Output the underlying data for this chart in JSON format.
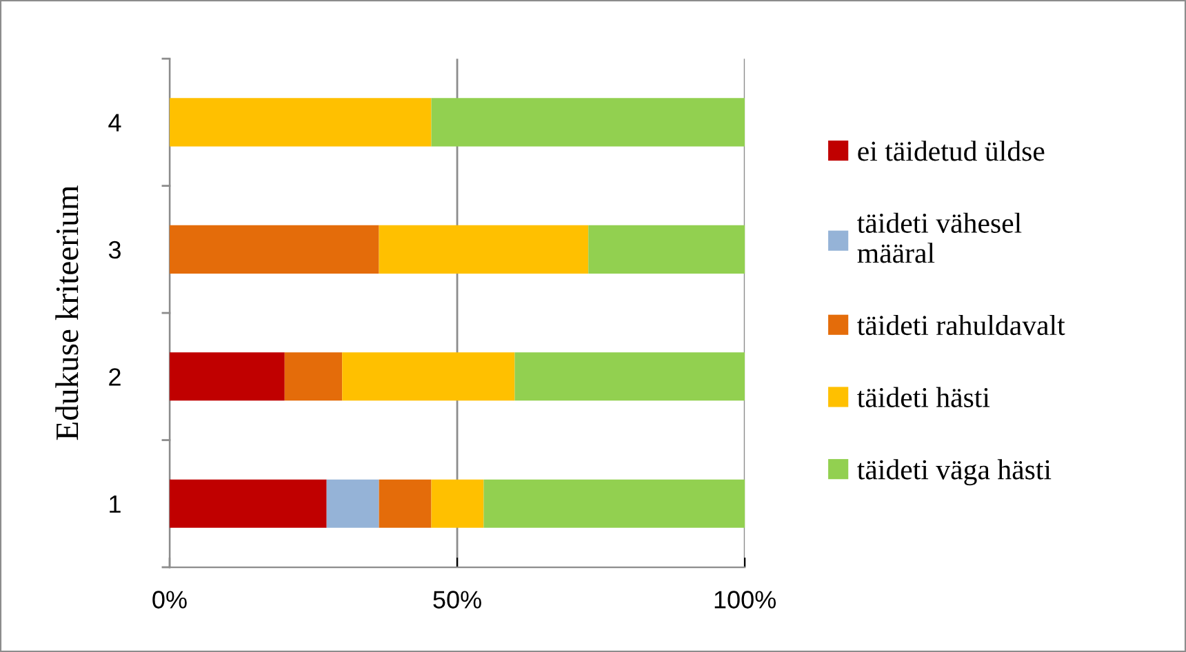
{
  "chart_data": {
    "type": "bar",
    "orientation": "horizontal",
    "stacked": true,
    "ylabel": "Edukuse kriteerium",
    "categories": [
      "4",
      "3",
      "2",
      "1"
    ],
    "series": [
      {
        "name": "ei täidetud üldse",
        "color": "#c00000",
        "values": [
          0,
          0,
          20,
          27.3
        ]
      },
      {
        "name": "täideti vähesel\nmääral",
        "color": "#95b3d7",
        "values": [
          0,
          0,
          0,
          9.1
        ]
      },
      {
        "name": "täideti rahuldavalt",
        "color": "#e46c0a",
        "values": [
          0,
          36.4,
          10,
          9.1
        ]
      },
      {
        "name": "täideti hästi",
        "color": "#ffc000",
        "values": [
          45.5,
          36.4,
          30,
          9.1
        ]
      },
      {
        "name": "täideti väga hästi",
        "color": "#92d050",
        "values": [
          54.5,
          27.3,
          40,
          45.5
        ]
      }
    ],
    "xlim": [
      0,
      100
    ],
    "xticks": [
      {
        "value": 0,
        "label": "0%"
      },
      {
        "value": 50,
        "label": "50%"
      },
      {
        "value": 100,
        "label": "100%"
      }
    ],
    "grid": "x",
    "legend": "right"
  }
}
